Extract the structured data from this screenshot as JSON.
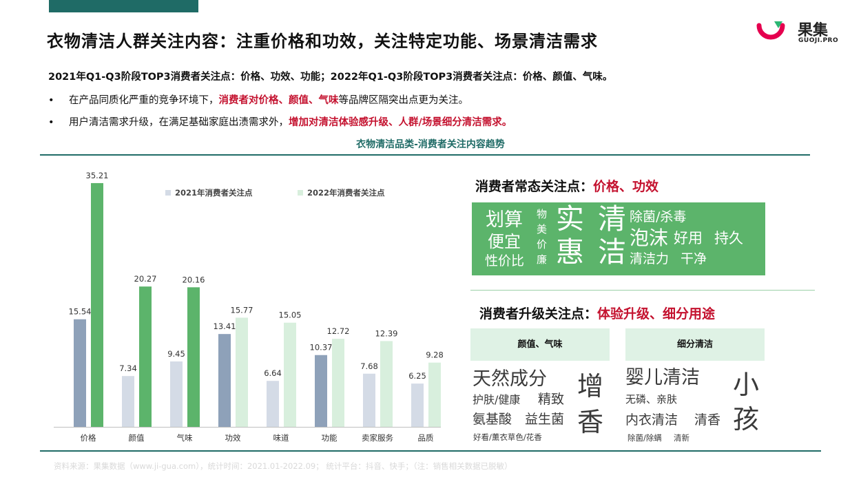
{
  "header": {
    "title": "衣物清洁人群关注内容：注重价格和功效，关注特定功能、场景清洁需求",
    "logo_name": "果集",
    "logo_sub": "GUOJI.PRO"
  },
  "summary": "2021年Q1-Q3阶段TOP3消费者关注点：价格、功效、功能；2022年Q1-Q3阶段TOP3消费者关注点：价格、颜值、气味。",
  "bullets": [
    {
      "mark": "•",
      "pre": "在产品同质化严重的竞争环境下，",
      "hl": "消费者对价格、颜值、气味",
      "post": "等品牌区隔突出点更为关注。"
    },
    {
      "mark": "•",
      "pre": "用户清洁需求升级，在满足基础家庭出渍需求外，",
      "hl": "增加对清洁体验感升级、人群/场景细分清洁需求。",
      "post": ""
    }
  ],
  "chart_data": {
    "type": "bar",
    "title": "衣物清洁品类-消费者关注内容趋势",
    "categories": [
      "价格",
      "颜值",
      "气味",
      "功效",
      "味道",
      "功能",
      "卖家服务",
      "品质"
    ],
    "series": [
      {
        "name": "2021年消费者关注点",
        "values": [
          15.54,
          7.34,
          9.45,
          13.41,
          6.64,
          10.37,
          7.68,
          6.25
        ]
      },
      {
        "name": "2022年消费者关注点",
        "values": [
          35.21,
          20.27,
          20.16,
          15.77,
          15.05,
          12.72,
          12.39,
          9.28
        ]
      }
    ],
    "series_highlight": [
      [
        true,
        false,
        false,
        true,
        false,
        true,
        false,
        false
      ],
      [
        true,
        true,
        true,
        false,
        false,
        false,
        false,
        false
      ]
    ],
    "ylim": [
      0,
      36
    ],
    "grid": false,
    "legend_placement": "top",
    "colors": {
      "s2021": "#8ea1b9",
      "s2021_light": "#d4dbe6",
      "s2022": "#5cb46b",
      "s2022_light": "#d8efdd",
      "axis": "#bfbfbf",
      "label": "#333333"
    }
  },
  "normal_section": {
    "prefix": "消费者常态关注点：",
    "highlight": "价格、功效",
    "words": [
      "划算",
      "便宜",
      "性价比",
      "物",
      "美",
      "价",
      "廉",
      "实",
      "惠",
      "清",
      "洁",
      "除菌/杀毒",
      "泡沫",
      "好用",
      "持久",
      "清洁力",
      "干净"
    ]
  },
  "upgrade_section": {
    "prefix": "消费者升级关注点：",
    "highlight": "体验升级、细分用途",
    "tabs": [
      "颜值、气味",
      "细分清洁"
    ],
    "words_left": [
      "天然成分",
      "护肤/健康",
      "精致",
      "氨基酸",
      "益生菌",
      "好看/薰衣草色/花香",
      "增",
      "香"
    ],
    "words_right": [
      "婴儿清洁",
      "无磷、亲肤",
      "内衣清洁",
      "清香",
      "除菌/除螨",
      "清新",
      "小",
      "孩"
    ]
  },
  "footer": "资料来源：果集数据（www.ji-gua.com），统计时间：2021.01-2022.09；   统计平台：抖音、快手；（注：销售相关数据已脱敏）",
  "colors": {
    "brand_teal": "#1f6b66",
    "accent_red": "#c4122f",
    "green": "#5cb46b",
    "light_green": "#dff2e5"
  }
}
